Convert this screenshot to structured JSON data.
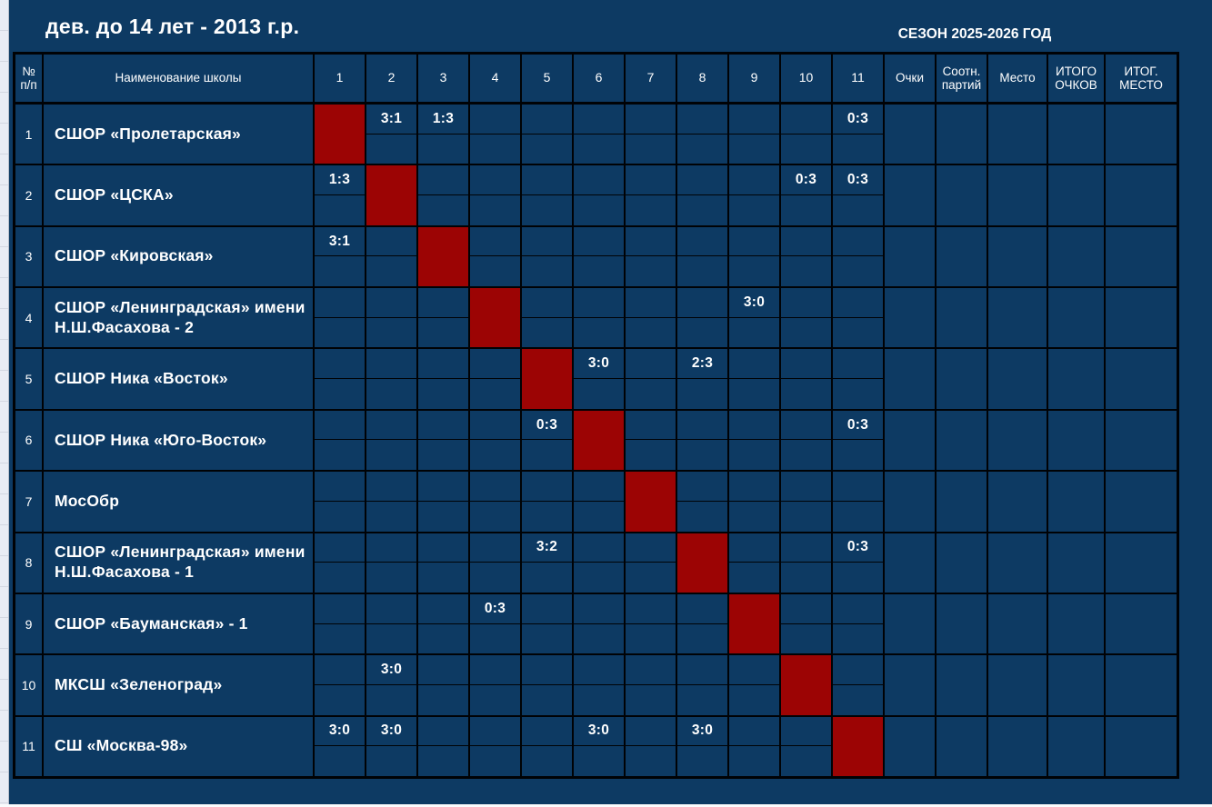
{
  "page": {
    "title": "дев. до 14 лет - 2013 г.р.",
    "season": "СЕЗОН 2025-2026 ГОД"
  },
  "table": {
    "headers": {
      "num": "№ п/п",
      "school": "Наименование школы",
      "rounds": [
        "1",
        "2",
        "3",
        "4",
        "5",
        "6",
        "7",
        "8",
        "9",
        "10",
        "11"
      ],
      "summary": [
        "Очки",
        "Соотн. партий",
        "Место",
        "ИТОГО ОЧКОВ",
        "ИТОГ. МЕСТО"
      ]
    },
    "teams": [
      {
        "num": "1",
        "name": "СШОР «Пролетарская»",
        "scores": {
          "2": "3:1",
          "3": "1:3",
          "11": "0:3"
        }
      },
      {
        "num": "2",
        "name": "СШОР «ЦСКА»",
        "scores": {
          "1": "1:3",
          "10": "0:3",
          "11": "0:3"
        }
      },
      {
        "num": "3",
        "name": "СШОР «Кировская»",
        "scores": {
          "1": "3:1"
        }
      },
      {
        "num": "4",
        "name": "СШОР «Ленинградская» имени Н.Ш.Фасахова - 2",
        "scores": {
          "9": "3:0"
        }
      },
      {
        "num": "5",
        "name": "СШОР Ника «Восток»",
        "scores": {
          "6": "3:0",
          "8": "2:3"
        }
      },
      {
        "num": "6",
        "name": "СШОР Ника «Юго-Восток»",
        "scores": {
          "5": "0:3",
          "11": "0:3"
        }
      },
      {
        "num": "7",
        "name": "МосОбр",
        "scores": {}
      },
      {
        "num": "8",
        "name": "СШОР «Ленинградская» имени Н.Ш.Фасахова - 1",
        "scores": {
          "5": "3:2",
          "11": "0:3"
        }
      },
      {
        "num": "9",
        "name": "СШОР «Бауманская» - 1",
        "scores": {
          "4": "0:3"
        }
      },
      {
        "num": "10",
        "name": "МКСШ «Зеленоград»",
        "scores": {
          "2": "3:0"
        }
      },
      {
        "num": "11",
        "name": "СШ «Москва-98»",
        "scores": {
          "1": "3:0",
          "2": "3:0",
          "6": "3:0",
          "8": "3:0"
        }
      }
    ]
  },
  "colors": {
    "background_navy": "#0d3a63",
    "diagonal_red": "#9c0404",
    "grid_black": "#000205",
    "text_white": "#ffffff",
    "sheet_edge": "#e9ecf4"
  }
}
